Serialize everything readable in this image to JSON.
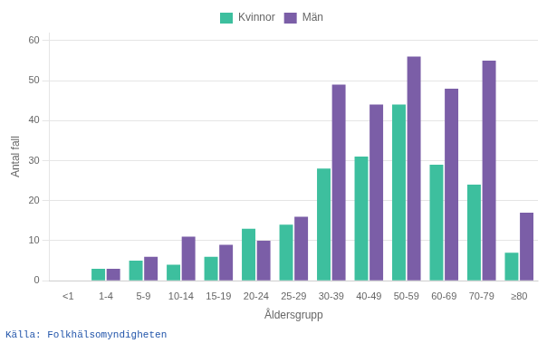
{
  "chart_data": {
    "type": "bar",
    "categories": [
      "<1",
      "1-4",
      "5-9",
      "10-14",
      "15-19",
      "20-24",
      "25-29",
      "30-39",
      "40-49",
      "50-59",
      "60-69",
      "70-79",
      "≥80"
    ],
    "series": [
      {
        "name": "Kvinnor",
        "color": "#3dbf9e",
        "values": [
          0,
          3,
          5,
          4,
          6,
          13,
          14,
          28,
          31,
          44,
          29,
          24,
          7
        ]
      },
      {
        "name": "Män",
        "color": "#7b5ea7",
        "values": [
          0,
          3,
          6,
          11,
          9,
          10,
          16,
          49,
          44,
          56,
          48,
          55,
          17
        ]
      }
    ],
    "xlabel": "Åldersgrupp",
    "ylabel": "Antal fall",
    "annotations": [
      "Källa: Folkhälsomyndigheten"
    ],
    "ylim": [
      0,
      62
    ],
    "yticks": [
      0,
      10,
      20,
      30,
      40,
      50,
      60
    ],
    "grid": true,
    "legend": "top"
  }
}
